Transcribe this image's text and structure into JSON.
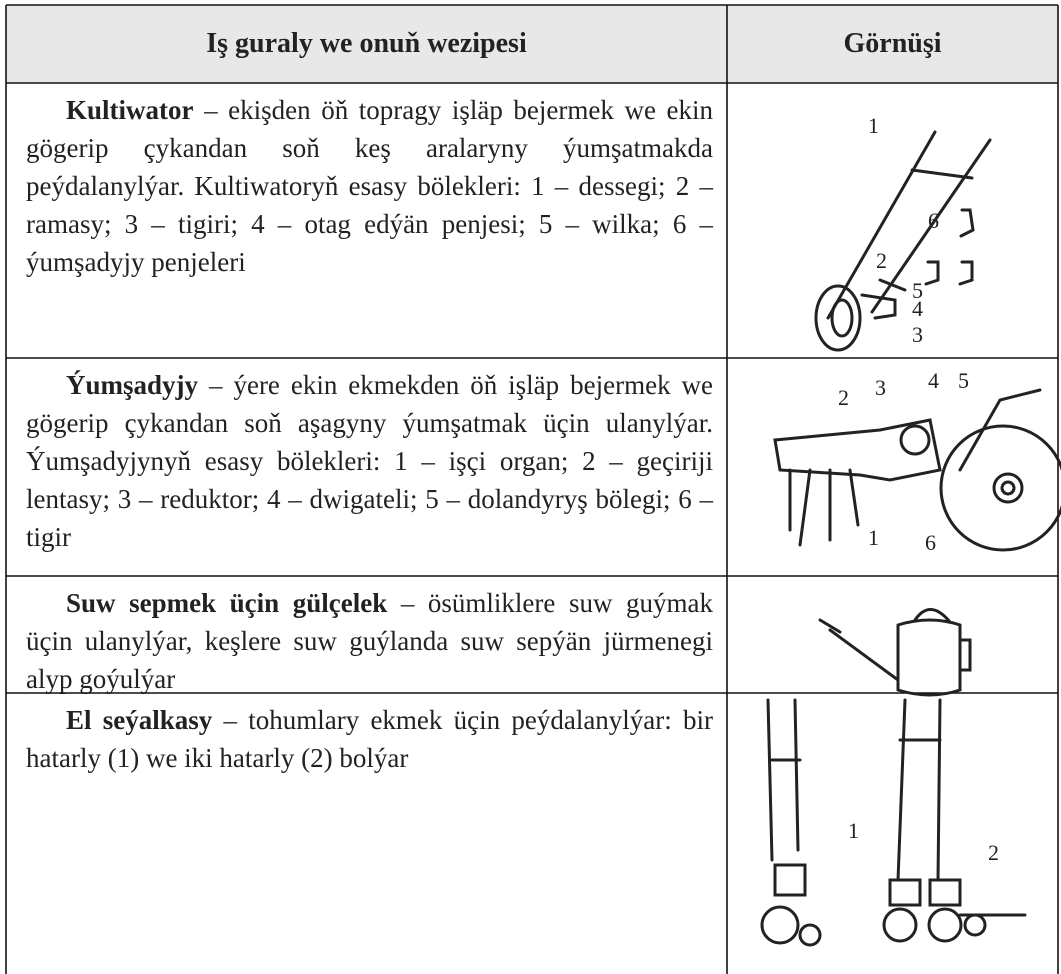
{
  "table": {
    "header": [
      "Iş guraly we onuň wezipesi",
      "Görnüşi"
    ],
    "rows": [
      {
        "term": "Kultiwator",
        "description": "– ekişden öň topragy işläp bejermek we ekin gögerip çykandan soň keş aralaryny ýumşatmakda peýdalanylýar. Kultiwatoryň esasy bölekleri: 1 – dessegi; 2 – ramasy; 3 – tigiri; 4 – otag edýän penjesi; 5 – wilka; 6 – ýumşadyjy penjeleri",
        "labels": [
          "1",
          "2",
          "3",
          "4",
          "5",
          "6"
        ]
      },
      {
        "term": "Ýumşadyjy",
        "description": "– ýere ekin ekmekden öň işläp bejermek we gögerip çykandan soň aşagyny ýumşatmak üçin ulanylýar. Ýumşadyjynyň esasy bölekleri: 1 – işçi organ; 2 – geçiriji lentasy; 3 – reduktor; 4 – dwigateli; 5 – dolandyryş bölegi; 6 – tigir",
        "labels": [
          "1",
          "2",
          "3",
          "4",
          "5",
          "6"
        ]
      },
      {
        "term": "Suw sepmek üçin gülçelek",
        "description": "– ösümliklere suw guýmak üçin ulanylýar, keşlere suw guýlanda suw sepýän jürmenegi alyp goýulýar",
        "labels": []
      },
      {
        "term": "El seýalkasy",
        "description": "– tohumlary ekmek üçin peýdalanylýar: bir hatarly (1) we iki hatarly (2) bolýar",
        "labels": [
          "1",
          "2"
        ]
      }
    ]
  }
}
